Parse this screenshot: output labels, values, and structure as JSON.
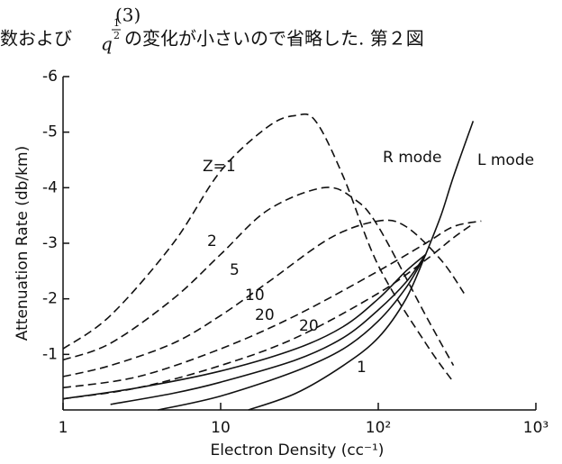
{
  "header": {
    "number": "(3)",
    "before": "数および",
    "symbol": "q",
    "numerator": "1",
    "denominator": "2",
    "after": "の変化が小さいので省略した. 第２図"
  },
  "chart_data": {
    "type": "line",
    "x_scale": "log",
    "xlabel": "Electron Density (cc⁻¹)",
    "ylabel": "Attenuation Rate (db/km)",
    "xlim": [
      1,
      1000
    ],
    "ylim": [
      0,
      -6
    ],
    "xticks": [
      1,
      10,
      {
        "value": 100,
        "label": "10²"
      },
      {
        "value": 1000,
        "label": "10³"
      }
    ],
    "yticks": [
      -1,
      -2,
      -3,
      -4,
      -5,
      -6
    ],
    "annotations": [
      "R mode",
      "L mode"
    ],
    "series": [
      {
        "label": "Z=1",
        "style": "dashed",
        "color": "#111",
        "x": [
          1,
          2,
          5,
          10,
          20,
          30,
          40,
          60,
          100,
          200,
          300
        ],
        "values": [
          -1.1,
          -1.7,
          -3.0,
          -4.3,
          -5.1,
          -5.3,
          -5.2,
          -4.2,
          -2.6,
          -1.2,
          -0.5
        ]
      },
      {
        "label": "2",
        "style": "dashed",
        "color": "#111",
        "x": [
          1,
          2,
          5,
          10,
          20,
          45,
          70,
          100,
          200,
          300
        ],
        "values": [
          -0.9,
          -1.2,
          -2.0,
          -2.8,
          -3.6,
          -4.0,
          -3.8,
          -3.3,
          -1.7,
          -0.8
        ]
      },
      {
        "label": "5",
        "style": "dashed",
        "color": "#111",
        "x": [
          1,
          2,
          5,
          10,
          20,
          50,
          100,
          150,
          250,
          350
        ],
        "values": [
          -0.6,
          -0.8,
          -1.2,
          -1.7,
          -2.3,
          -3.1,
          -3.4,
          -3.3,
          -2.7,
          -2.1
        ]
      },
      {
        "label": "10",
        "style": "dashed",
        "color": "#111",
        "x": [
          1,
          3,
          10,
          30,
          100,
          200,
          300,
          450
        ],
        "values": [
          -0.4,
          -0.6,
          -1.1,
          -1.7,
          -2.5,
          -3.0,
          -3.3,
          -3.4
        ]
      },
      {
        "label": "20",
        "style": "dashed",
        "color": "#111",
        "x": [
          1,
          3,
          10,
          30,
          100,
          200,
          300,
          400
        ],
        "values": [
          -0.2,
          -0.4,
          -0.8,
          -1.3,
          -2.1,
          -2.7,
          -3.1,
          -3.35
        ]
      },
      {
        "label": "20",
        "style": "solid",
        "color": "#111",
        "x": [
          1,
          3,
          10,
          30,
          60,
          100,
          150,
          200
        ],
        "values": [
          -0.2,
          -0.4,
          -0.7,
          -1.1,
          -1.5,
          -2.0,
          -2.5,
          -2.8
        ]
      },
      {
        "style": "solid",
        "color": "#111",
        "x": [
          2,
          5,
          10,
          30,
          60,
          100,
          150,
          200
        ],
        "values": [
          -0.1,
          -0.3,
          -0.5,
          -0.9,
          -1.3,
          -1.8,
          -2.3,
          -2.8
        ]
      },
      {
        "style": "solid",
        "color": "#111",
        "x": [
          4,
          10,
          30,
          60,
          100,
          150,
          200
        ],
        "values": [
          0,
          -0.25,
          -0.7,
          -1.1,
          -1.6,
          -2.2,
          -2.8
        ]
      },
      {
        "label": "1",
        "style": "solid",
        "color": "#111",
        "x": [
          15,
          30,
          60,
          100,
          150,
          200
        ],
        "values": [
          0,
          -0.3,
          -0.8,
          -1.3,
          -2.0,
          -2.8
        ]
      },
      {
        "style": "solid",
        "color": "#111",
        "x": [
          200,
          250,
          300,
          400
        ],
        "values": [
          -2.8,
          -3.5,
          -4.2,
          -5.2
        ]
      }
    ]
  }
}
